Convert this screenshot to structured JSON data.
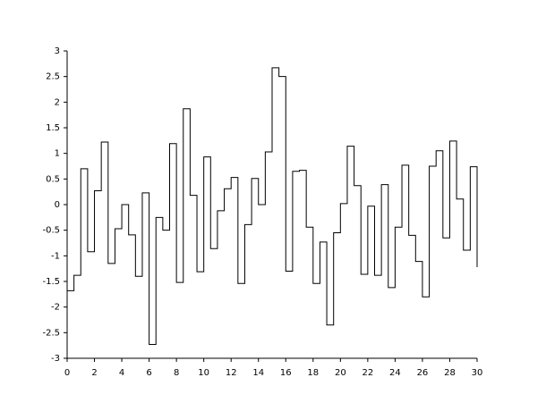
{
  "chart_data": {
    "type": "step",
    "x": [
      0,
      0.5,
      1,
      1.5,
      2,
      2.5,
      3,
      3.5,
      4,
      4.5,
      5,
      5.5,
      6,
      6.5,
      7,
      7.5,
      8,
      8.5,
      9,
      9.5,
      10,
      10.5,
      11,
      11.5,
      12,
      12.5,
      13,
      13.5,
      14,
      14.5,
      15,
      15.5,
      16,
      16.5,
      17,
      17.5,
      18,
      18.5,
      19,
      19.5,
      20,
      20.5,
      21,
      21.5,
      22,
      22.5,
      23,
      23.5,
      24,
      24.5,
      25,
      25.5,
      26,
      26.5,
      27,
      27.5,
      28,
      28.5,
      29,
      29.5,
      30
    ],
    "values": [
      -1.68,
      -1.38,
      0.7,
      -0.92,
      0.27,
      1.22,
      -1.15,
      -0.47,
      0.0,
      -0.59,
      -1.4,
      0.23,
      -2.73,
      -0.25,
      -0.5,
      1.19,
      -1.52,
      1.87,
      0.18,
      -1.31,
      0.93,
      -0.86,
      -0.12,
      0.31,
      0.53,
      -1.54,
      -0.39,
      0.51,
      0.0,
      1.03,
      2.67,
      2.5,
      -1.3,
      0.65,
      0.67,
      -0.44,
      -1.54,
      -0.73,
      -2.35,
      -0.55,
      0.02,
      1.14,
      0.37,
      -1.36,
      -0.03,
      -1.38,
      0.39,
      -1.62,
      -0.44,
      0.77,
      -0.6,
      -1.11,
      -1.8,
      0.75,
      1.05,
      -0.65,
      1.24,
      0.11,
      -0.89,
      0.74,
      -1.22
    ],
    "color": "#000000",
    "xlim": [
      0,
      30
    ],
    "xticks": [
      0,
      2,
      4,
      6,
      8,
      10,
      12,
      14,
      16,
      18,
      20,
      22,
      24,
      26,
      28,
      30
    ],
    "ylim": [
      -3,
      3
    ],
    "yticks": [
      -3,
      -2.5,
      -2,
      -1.5,
      -1,
      -0.5,
      0,
      0.5,
      1,
      1.5,
      2,
      2.5,
      3
    ]
  }
}
